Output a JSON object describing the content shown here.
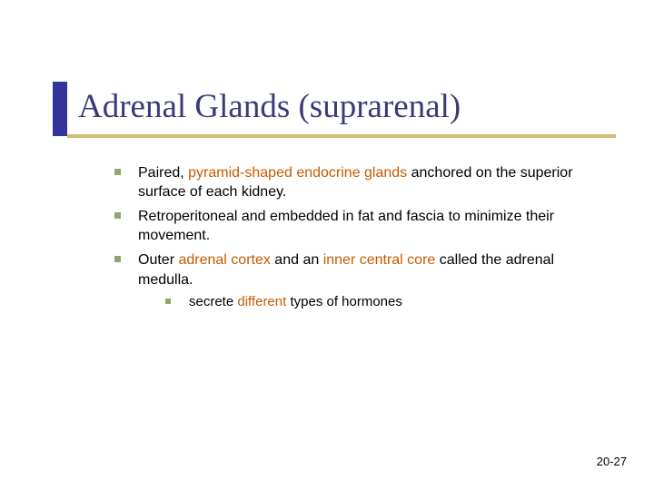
{
  "colors": {
    "title_color": "#3b3b7a",
    "accent_bar": "#333399",
    "accent_underline": "#cdbe70",
    "bullet_color": "#8fa56e",
    "highlight_color": "#c85a00",
    "text_color": "#000000",
    "background": "#ffffff"
  },
  "title": "Adrenal Glands (suprarenal)",
  "bullets": {
    "b1": {
      "pre": "Paired, ",
      "hl": "pyramid-shaped endocrine glands",
      "post": " anchored on the superior surface of each kidney."
    },
    "b2": "Retroperitoneal and embedded in fat and fascia to minimize their movement.",
    "b3": {
      "pre": "Outer ",
      "hl1": "adrenal cortex",
      "mid": " and an ",
      "hl2": "inner central core",
      "post": " called the adrenal medulla."
    },
    "b3a": {
      "pre": "secrete ",
      "hl": "different",
      "post": " types of hormones"
    }
  },
  "page_number": "20-27"
}
